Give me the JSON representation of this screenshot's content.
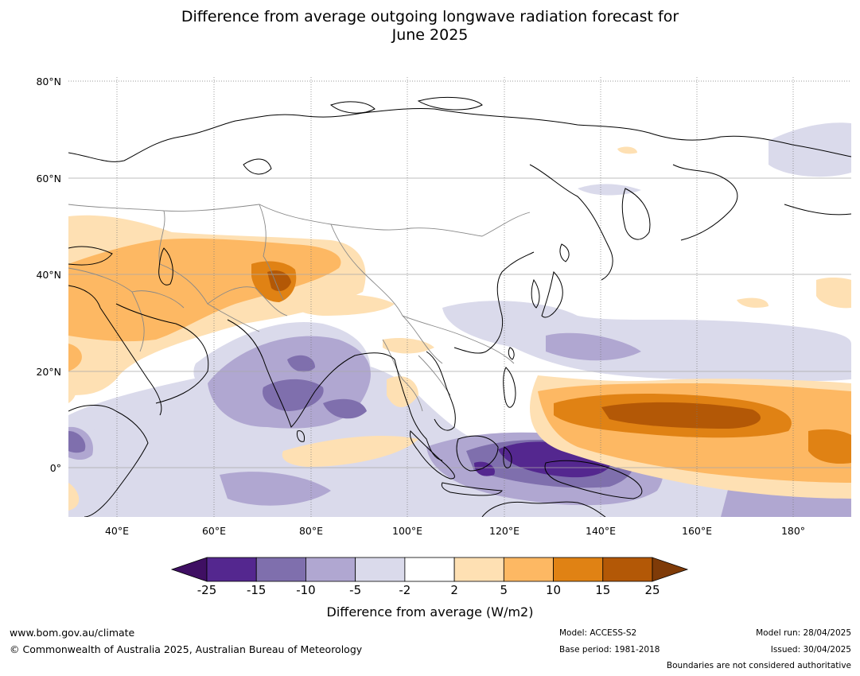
{
  "title_line1": "Difference from average outgoing longwave radiation forecast for",
  "title_line2": "June 2025",
  "lat_labels": [
    "80°N",
    "60°N",
    "40°N",
    "20°N",
    "0°"
  ],
  "lon_labels": [
    "40°E",
    "60°E",
    "80°E",
    "100°E",
    "120°E",
    "140°E",
    "160°E",
    "180°"
  ],
  "colorbar": {
    "ticks": [
      "-25",
      "-15",
      "-10",
      "-5",
      "-2",
      "2",
      "5",
      "10",
      "15",
      "25"
    ],
    "colors": [
      "#3f0f63",
      "#54278f",
      "#7f6fad",
      "#b0a7d1",
      "#dadaeb",
      "#ffffff",
      "#fee0b3",
      "#fdb863",
      "#e08214",
      "#b35806",
      "#7f3b08"
    ],
    "title": "Difference from average (W/m2)"
  },
  "footer": {
    "website": "www.bom.gov.au/climate",
    "copyright": "© Commonwealth of Australia 2025, Australian Bureau of Meteorology",
    "model": "Model: ACCESS-S2",
    "base_period": "Base period: 1981-2018",
    "model_run": "Model run: 28/04/2025",
    "issued": "Issued: 30/04/2025",
    "disclaimer": "Boundaries are not considered authoritative"
  }
}
